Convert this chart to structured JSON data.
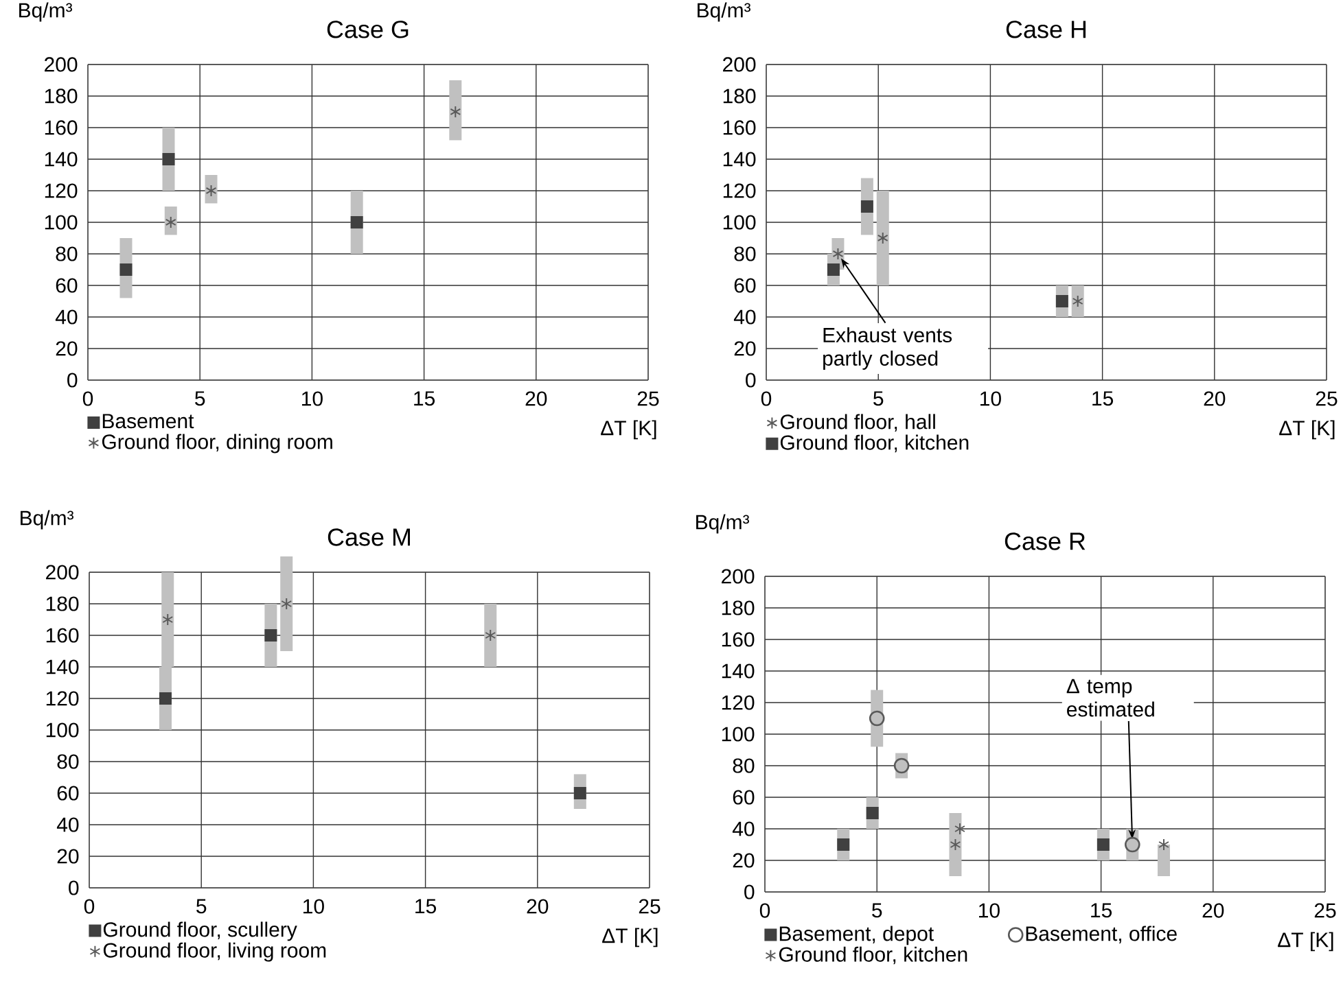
{
  "chart_data": [
    {
      "type": "scatter",
      "title": "Case G",
      "xlabel": "ΔT [K]",
      "ylabel": "Bq/m³",
      "xlim": [
        0,
        25
      ],
      "ylim": [
        0,
        200
      ],
      "xticks": [
        0,
        5,
        10,
        15,
        20,
        25
      ],
      "yticks": [
        0,
        20,
        40,
        60,
        80,
        100,
        120,
        140,
        160,
        180,
        200
      ],
      "grid": true,
      "legend": "bottom",
      "series": [
        {
          "name": "Basement",
          "color": "#404040",
          "marker": "square",
          "x": [
            1.7,
            3.6,
            12.0
          ],
          "values": [
            70,
            140,
            100
          ],
          "errors": [
            [
              52,
              90
            ],
            [
              120,
              160
            ],
            [
              80,
              120
            ]
          ]
        },
        {
          "name": "Ground floor, dining room",
          "color": "#595959",
          "marker": "cross",
          "x": [
            3.7,
            5.5,
            16.4
          ],
          "values": [
            100,
            120,
            170
          ],
          "errors": [
            [
              92,
              110
            ],
            [
              112,
              130
            ],
            [
              152,
              190
            ]
          ]
        }
      ]
    },
    {
      "type": "scatter",
      "title": "Case H",
      "xlabel": "ΔT [K]",
      "ylabel": "Bq/m³",
      "xlim": [
        0,
        25
      ],
      "ylim": [
        0,
        200
      ],
      "xticks": [
        0,
        5,
        10,
        15,
        20,
        25
      ],
      "yticks": [
        0,
        20,
        40,
        60,
        80,
        100,
        120,
        140,
        160,
        180,
        200
      ],
      "grid": true,
      "legend": "bottom",
      "annotations": [
        {
          "text": "Exhaust vents partly closed",
          "x": 3.2,
          "y": 80
        }
      ],
      "series": [
        {
          "name": "Ground floor, hall",
          "color": "#595959",
          "marker": "cross",
          "x": [
            3.2,
            5.2,
            13.9
          ],
          "values": [
            80,
            90,
            50
          ],
          "errors": [
            [
              70,
              90
            ],
            [
              60,
              120
            ],
            [
              40,
              60
            ]
          ]
        },
        {
          "name": "Ground floor, kitchen",
          "color": "#404040",
          "marker": "square",
          "x": [
            3.0,
            4.5,
            13.2
          ],
          "values": [
            70,
            110,
            50
          ],
          "errors": [
            [
              60,
              80
            ],
            [
              92,
              128
            ],
            [
              40,
              60
            ]
          ]
        }
      ]
    },
    {
      "type": "scatter",
      "title": "Case M",
      "xlabel": "ΔT [K]",
      "ylabel": "Bq/m³",
      "xlim": [
        0,
        25
      ],
      "ylim": [
        0,
        200
      ],
      "xticks": [
        0,
        5,
        10,
        15,
        20,
        25
      ],
      "yticks": [
        0,
        20,
        40,
        60,
        80,
        100,
        120,
        140,
        160,
        180,
        200
      ],
      "grid": true,
      "legend": "bottom",
      "series": [
        {
          "name": "Ground floor, scullery",
          "color": "#404040",
          "marker": "square",
          "x": [
            3.4,
            8.1,
            21.9
          ],
          "values": [
            120,
            160,
            60
          ],
          "errors": [
            [
              100,
              140
            ],
            [
              140,
              180
            ],
            [
              50,
              72
            ]
          ]
        },
        {
          "name": "Ground floor, living room",
          "color": "#595959",
          "marker": "cross",
          "x": [
            3.5,
            8.8,
            17.9
          ],
          "values": [
            170,
            180,
            160
          ],
          "errors": [
            [
              140,
              200
            ],
            [
              150,
              210
            ],
            [
              140,
              180
            ]
          ]
        }
      ]
    },
    {
      "type": "scatter",
      "title": "Case R",
      "xlabel": "ΔT [K]",
      "ylabel": "Bq/m³",
      "xlim": [
        0,
        25
      ],
      "ylim": [
        0,
        200
      ],
      "xticks": [
        0,
        5,
        10,
        15,
        20,
        25
      ],
      "yticks": [
        0,
        20,
        40,
        60,
        80,
        100,
        120,
        140,
        160,
        180,
        200
      ],
      "grid": true,
      "legend": "bottom",
      "annotations": [
        {
          "text": "Δ temp estimated",
          "x": 16.4,
          "y": 30
        }
      ],
      "series": [
        {
          "name": "Basement, depot",
          "color": "#404040",
          "marker": "square",
          "x": [
            3.5,
            4.8,
            15.1
          ],
          "values": [
            30,
            50,
            30
          ],
          "errors": [
            [
              20,
              40
            ],
            [
              40,
              60
            ],
            [
              20,
              40
            ]
          ]
        },
        {
          "name": "Basement, office",
          "color": "#595959",
          "marker": "circle",
          "x": [
            5.0,
            6.1,
            16.4
          ],
          "values": [
            110,
            80,
            30
          ],
          "errors": [
            [
              92,
              128
            ],
            [
              72,
              88
            ],
            [
              20,
              40
            ]
          ]
        },
        {
          "name": "Ground floor, kitchen",
          "color": "#595959",
          "marker": "cross",
          "x": [
            8.5,
            8.7,
            17.8
          ],
          "values": [
            30,
            40,
            30
          ],
          "errors": [
            [
              10,
              50
            ],
            null,
            [
              10,
              30
            ]
          ]
        }
      ]
    }
  ]
}
